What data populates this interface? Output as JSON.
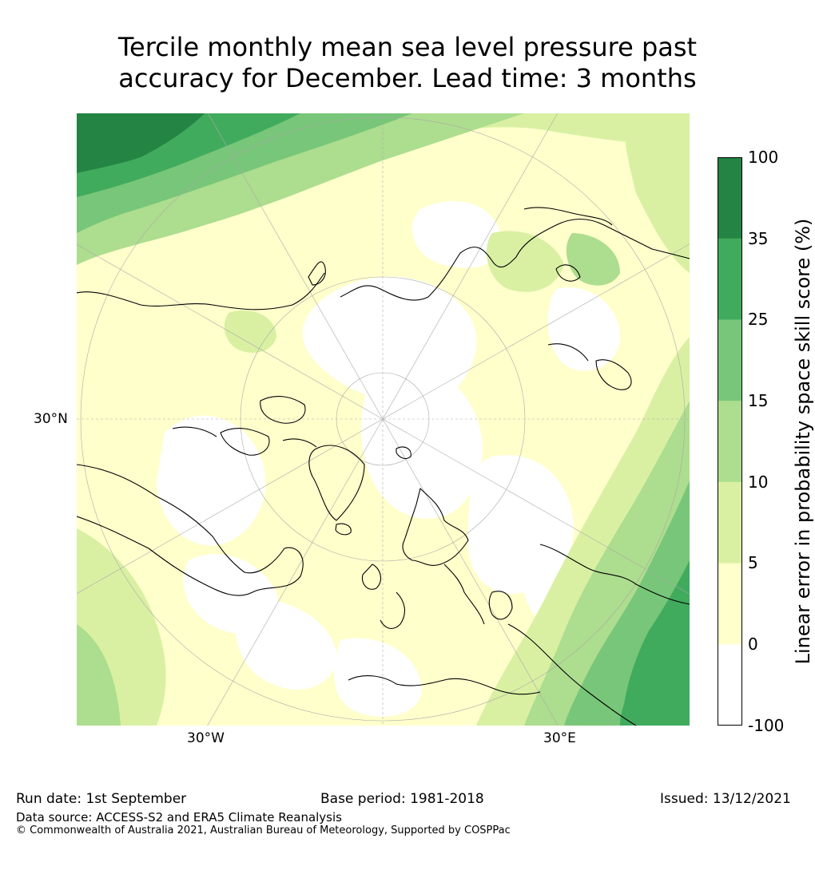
{
  "title_line1": "Tercile monthly mean sea level pressure past",
  "title_line2": "accuracy for December. Lead time: 3 months",
  "map": {
    "projection": "north-polar-stereographic",
    "lat_label": "30°N",
    "lon_labels": [
      "30°W",
      "30°E"
    ]
  },
  "colorbar": {
    "label": "Linear error in probability space skill score (%)",
    "ticks": [
      "100",
      "35",
      "25",
      "15",
      "10",
      "5",
      "0",
      "-100"
    ],
    "bins": [
      {
        "from": -100,
        "to": 0,
        "color": "#ffffff"
      },
      {
        "from": 0,
        "to": 5,
        "color": "#ffffcc"
      },
      {
        "from": 5,
        "to": 10,
        "color": "#d9f0a3"
      },
      {
        "from": 10,
        "to": 15,
        "color": "#addd8e"
      },
      {
        "from": 15,
        "to": 25,
        "color": "#78c679"
      },
      {
        "from": 25,
        "to": 35,
        "color": "#41ab5d"
      },
      {
        "from": 35,
        "to": 100,
        "color": "#238443"
      }
    ]
  },
  "footer": {
    "run_date": "Run date: 1st September",
    "base_period": "Base period: 1981-2018",
    "issued": "Issued: 13/12/2021",
    "data_source": "Data source: ACCESS-S2 and ERA5 Climate Reanalysis",
    "copyright": "© Commonwealth of Australia 2021, Australian Bureau of Meteorology, Supported by COSPPac"
  }
}
